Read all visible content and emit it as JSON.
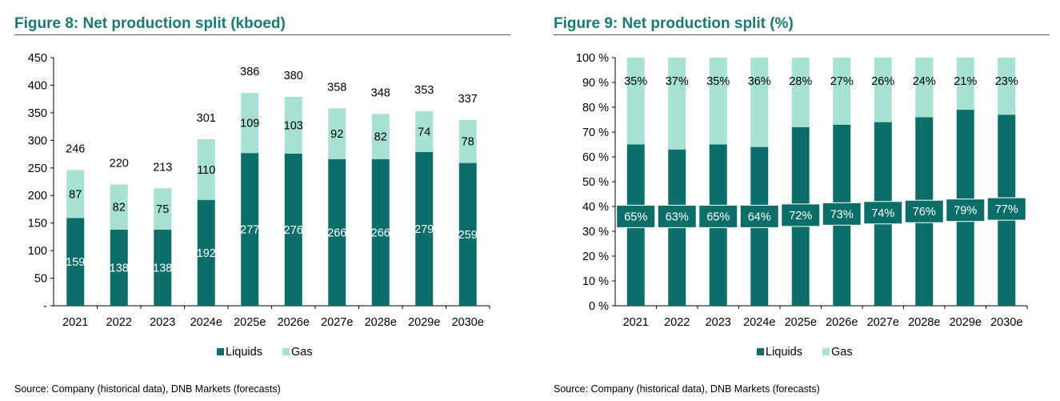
{
  "colors": {
    "title": "#1a7a72",
    "liquids": "#0b6e69",
    "gas": "#a6e1d3"
  },
  "chart_data": [
    {
      "type": "bar",
      "stacked": true,
      "title": "Figure 8: Net production split (kboed)",
      "xlabel": "",
      "ylabel": "",
      "categories": [
        "2021",
        "2022",
        "2023",
        "2024e",
        "2025e",
        "2026e",
        "2027e",
        "2028e",
        "2029e",
        "2030e"
      ],
      "series": [
        {
          "name": "Liquids",
          "values": [
            159,
            138,
            138,
            192,
            277,
            276,
            266,
            266,
            279,
            259
          ]
        },
        {
          "name": "Gas",
          "values": [
            87,
            82,
            75,
            110,
            109,
            103,
            92,
            82,
            74,
            78
          ]
        }
      ],
      "totals": [
        246,
        220,
        213,
        301,
        386,
        380,
        358,
        348,
        353,
        337
      ],
      "ylim": [
        0,
        450
      ],
      "yticks": [
        "-",
        "50",
        "100",
        "150",
        "200",
        "250",
        "300",
        "350",
        "400",
        "450"
      ],
      "legend": "bottom",
      "source": "Source: Company (historical data), DNB Markets (forecasts)"
    },
    {
      "type": "bar",
      "stacked": true,
      "title": "Figure 9: Net production split (%)",
      "xlabel": "",
      "ylabel": "",
      "categories": [
        "2021",
        "2022",
        "2023",
        "2024e",
        "2025e",
        "2026e",
        "2027e",
        "2028e",
        "2029e",
        "2030e"
      ],
      "series": [
        {
          "name": "Liquids",
          "values": [
            65,
            63,
            65,
            64,
            72,
            73,
            74,
            76,
            79,
            77
          ],
          "labels": [
            "65%",
            "63%",
            "65%",
            "64%",
            "72%",
            "73%",
            "74%",
            "76%",
            "79%",
            "77%"
          ]
        },
        {
          "name": "Gas",
          "values": [
            35,
            37,
            35,
            36,
            28,
            27,
            26,
            24,
            21,
            23
          ],
          "labels": [
            "35%",
            "37%",
            "35%",
            "36%",
            "28%",
            "27%",
            "26%",
            "24%",
            "21%",
            "23%"
          ]
        }
      ],
      "ylim": [
        0,
        100
      ],
      "yticks": [
        "0 %",
        "10 %",
        "20 %",
        "30 %",
        "40 %",
        "50 %",
        "60 %",
        "70 %",
        "80 %",
        "90 %",
        "100 %"
      ],
      "legend": "bottom",
      "source": "Source: Company (historical data), DNB Markets (forecasts)"
    }
  ]
}
